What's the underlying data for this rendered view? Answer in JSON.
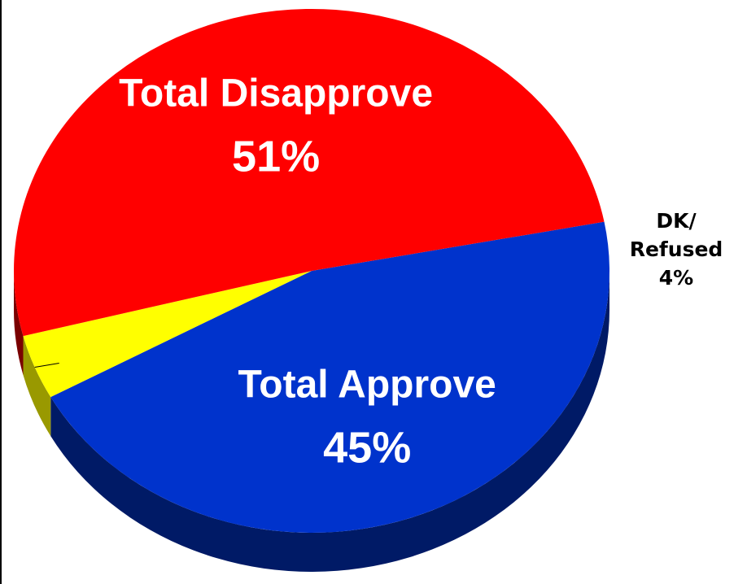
{
  "chart_data": {
    "type": "pie",
    "style": "3d",
    "slices": [
      {
        "label": "Total Approve",
        "value": 45,
        "value_text": "45%",
        "color": "#0033CC",
        "side_color": "#001a66",
        "label_color": "#FFFFFF",
        "label_position": "inside"
      },
      {
        "label": "DK/ Refused",
        "label_lines": [
          "DK/",
          "Refused"
        ],
        "value": 4,
        "value_text": "4%",
        "color": "#FFFF00",
        "side_color": "#999900",
        "label_color": "#000000",
        "label_position": "outside"
      },
      {
        "label": "Total Disapprove",
        "value": 51,
        "value_text": "51%",
        "color": "#FF0000",
        "side_color": "#7A0000",
        "label_color": "#FFFFFF",
        "label_position": "inside"
      }
    ],
    "legend": "none"
  }
}
